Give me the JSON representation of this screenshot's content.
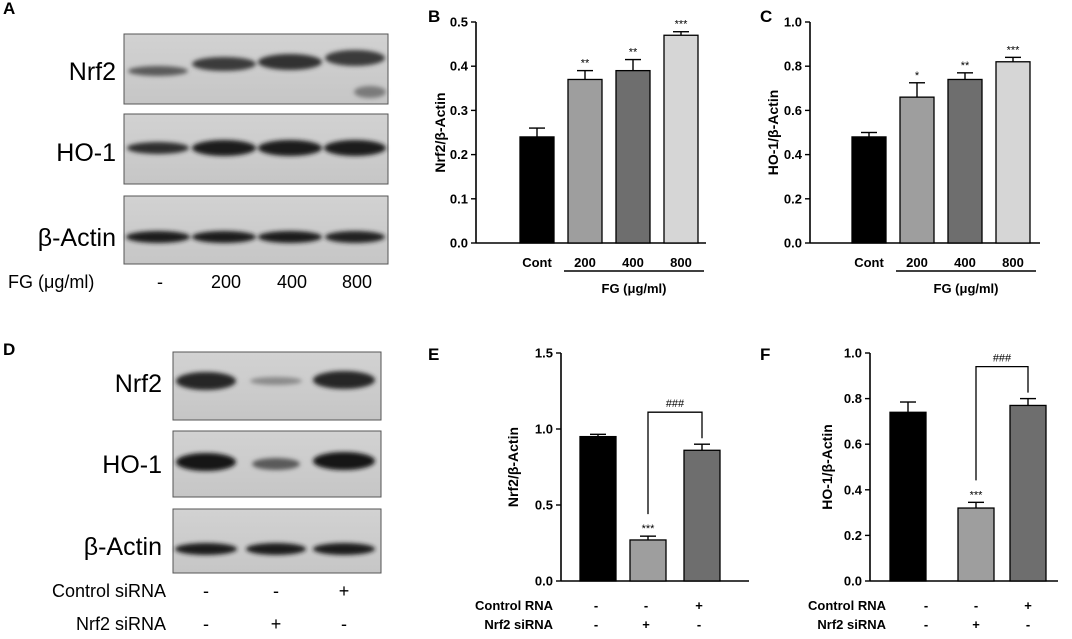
{
  "panels": {
    "A": "A",
    "B": "B",
    "C": "C",
    "D": "D",
    "E": "E",
    "F": "F"
  },
  "blot_a": {
    "bands": [
      "Nrf2",
      "HO-1",
      "β-Actin"
    ],
    "condition_label": "FG (μg/ml)",
    "lanes": [
      "-",
      "200",
      "400",
      "800"
    ]
  },
  "blot_d": {
    "bands": [
      "Nrf2",
      "HO-1",
      "β-Actin"
    ],
    "rows": [
      {
        "label": "Control siRNA",
        "values": [
          "-",
          "-",
          "+"
        ]
      },
      {
        "label": "Nrf2 siRNA",
        "values": [
          "-",
          "+",
          "-"
        ]
      }
    ]
  },
  "chart_data": [
    {
      "panel": "B",
      "type": "bar",
      "ylabel": "Nrf2/β-Actin",
      "ylim": [
        0,
        0.5
      ],
      "yticks": [
        "0.0",
        "0.1",
        "0.2",
        "0.3",
        "0.4",
        "0.5"
      ],
      "categories": [
        "Cont",
        "200",
        "400",
        "800"
      ],
      "values": [
        0.24,
        0.37,
        0.39,
        0.47
      ],
      "errors": [
        0.02,
        0.02,
        0.025,
        0.008
      ],
      "bar_colors": [
        "#000000",
        "#9e9e9e",
        "#6e6e6e",
        "#d6d6d6"
      ],
      "significance": [
        "",
        "**",
        "**",
        "***"
      ],
      "group_label": "FG (μg/ml)"
    },
    {
      "panel": "C",
      "type": "bar",
      "ylabel": "HO-1/β-Actin",
      "ylim": [
        0,
        1.0
      ],
      "yticks": [
        "0.0",
        "0.2",
        "0.4",
        "0.6",
        "0.8",
        "1.0"
      ],
      "categories": [
        "Cont",
        "200",
        "400",
        "800"
      ],
      "values": [
        0.48,
        0.66,
        0.74,
        0.82
      ],
      "errors": [
        0.02,
        0.065,
        0.03,
        0.02
      ],
      "bar_colors": [
        "#000000",
        "#9e9e9e",
        "#6e6e6e",
        "#d6d6d6"
      ],
      "significance": [
        "",
        "*",
        "**",
        "***"
      ],
      "group_label": "FG (μg/ml)"
    },
    {
      "panel": "E",
      "type": "bar",
      "ylabel": "Nrf2/β-Actin",
      "ylim": [
        0,
        1.5
      ],
      "yticks": [
        "0.0",
        "0.5",
        "1.0",
        "1.5"
      ],
      "values": [
        0.95,
        0.27,
        0.86
      ],
      "errors": [
        0.015,
        0.025,
        0.04
      ],
      "bar_colors": [
        "#000000",
        "#9e9e9e",
        "#6e6e6e"
      ],
      "significance": [
        "",
        "***",
        ""
      ],
      "bracket": {
        "from": 1,
        "to": 2,
        "label": "###"
      },
      "row_labels": [
        {
          "label": "Control RNA",
          "values": [
            "-",
            "-",
            "+"
          ]
        },
        {
          "label": "Nrf2 siRNA",
          "values": [
            "-",
            "+",
            "-"
          ]
        }
      ]
    },
    {
      "panel": "F",
      "type": "bar",
      "ylabel": "HO-1/β-Actin",
      "ylim": [
        0,
        1.0
      ],
      "yticks": [
        "0.0",
        "0.2",
        "0.4",
        "0.6",
        "0.8",
        "1.0"
      ],
      "values": [
        0.74,
        0.32,
        0.77
      ],
      "errors": [
        0.045,
        0.025,
        0.03
      ],
      "bar_colors": [
        "#000000",
        "#9e9e9e",
        "#6e6e6e"
      ],
      "significance": [
        "",
        "***",
        ""
      ],
      "bracket": {
        "from": 1,
        "to": 2,
        "label": "###"
      },
      "row_labels": [
        {
          "label": "Control RNA",
          "values": [
            "-",
            "-",
            "+"
          ]
        },
        {
          "label": "Nrf2 siRNA",
          "values": [
            "-",
            "+",
            "-"
          ]
        }
      ]
    }
  ]
}
